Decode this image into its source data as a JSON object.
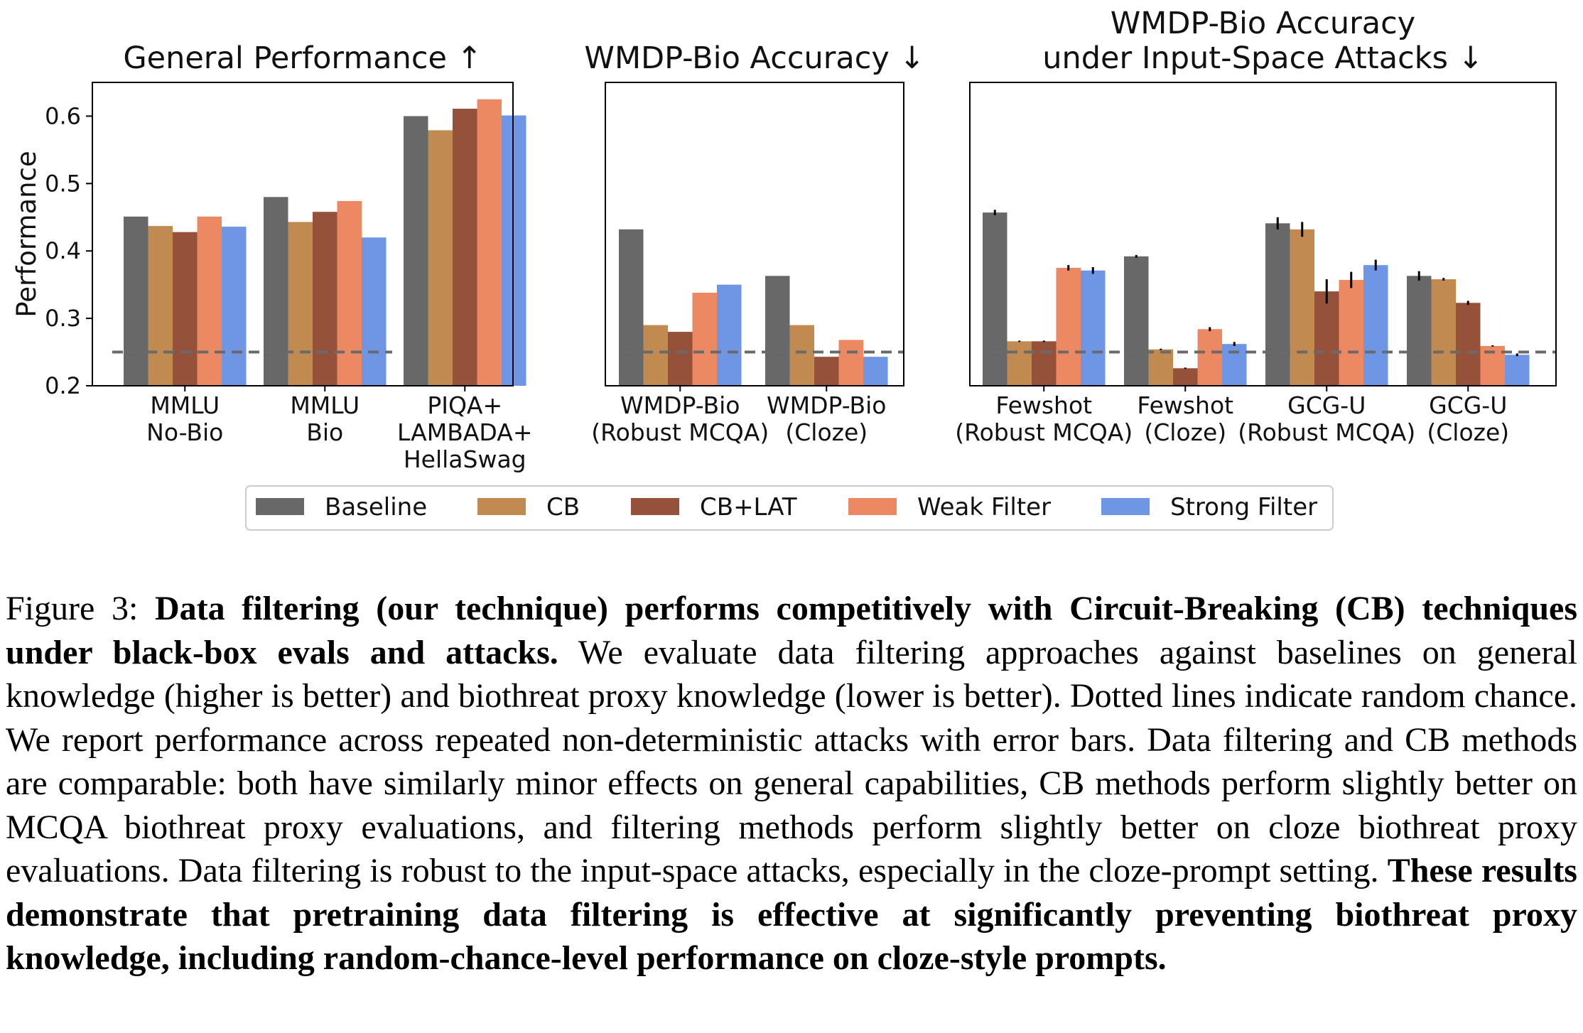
{
  "chart_data": [
    {
      "type": "bar",
      "title": "General Performance  ↑",
      "title_lines": [
        "General Performance  ↑"
      ],
      "ylabel": "Performance",
      "ylim": [
        0.2,
        0.65
      ],
      "yticks": [
        "0.2",
        "0.3",
        "0.4",
        "0.5",
        "0.6"
      ],
      "ytick_values": [
        0.2,
        0.3,
        0.4,
        0.5,
        0.6
      ],
      "random_chance": 0.25,
      "categories": [
        {
          "lines": [
            "MMLU",
            "No-Bio"
          ]
        },
        {
          "lines": [
            "MMLU",
            "Bio"
          ]
        },
        {
          "lines": [
            "PIQA+",
            "LAMBADA+",
            "HellaSwag"
          ]
        }
      ],
      "series": [
        {
          "name": "Baseline",
          "values": [
            0.451,
            0.48,
            0.6
          ]
        },
        {
          "name": "CB",
          "values": [
            0.437,
            0.443,
            0.579
          ]
        },
        {
          "name": "CB+LAT",
          "values": [
            0.428,
            0.458,
            0.611
          ]
        },
        {
          "name": "Weak Filter",
          "values": [
            0.451,
            0.474,
            0.625
          ]
        },
        {
          "name": "Strong Filter",
          "values": [
            0.436,
            0.42,
            0.601
          ]
        }
      ]
    },
    {
      "type": "bar",
      "title": "WMDP-Bio Accuracy  ↓",
      "title_lines": [
        "WMDP-Bio Accuracy  ↓"
      ],
      "ylim": [
        0.2,
        0.65
      ],
      "random_chance": 0.25,
      "categories": [
        {
          "lines": [
            "WMDP-Bio",
            "(Robust MCQA)"
          ]
        },
        {
          "lines": [
            "WMDP-Bio",
            "(Cloze)"
          ]
        }
      ],
      "series": [
        {
          "name": "Baseline",
          "values": [
            0.432,
            0.363
          ]
        },
        {
          "name": "CB",
          "values": [
            0.29,
            0.29
          ]
        },
        {
          "name": "CB+LAT",
          "values": [
            0.28,
            0.243
          ]
        },
        {
          "name": "Weak Filter",
          "values": [
            0.338,
            0.268
          ]
        },
        {
          "name": "Strong Filter",
          "values": [
            0.35,
            0.243
          ]
        }
      ]
    },
    {
      "type": "bar",
      "title": "WMDP-Bio Accuracy under Input-Space Attacks  ↓",
      "title_lines": [
        "WMDP-Bio Accuracy",
        "under Input-Space Attacks  ↓"
      ],
      "ylim": [
        0.2,
        0.65
      ],
      "random_chance": 0.25,
      "categories": [
        {
          "lines": [
            "Fewshot",
            "(Robust MCQA)"
          ]
        },
        {
          "lines": [
            "Fewshot",
            "(Cloze)"
          ]
        },
        {
          "lines": [
            "GCG-U",
            "(Robust MCQA)"
          ]
        },
        {
          "lines": [
            "GCG-U",
            "(Cloze)"
          ]
        }
      ],
      "series": [
        {
          "name": "Baseline",
          "values": [
            0.457,
            0.392,
            0.441,
            0.363
          ],
          "errors": [
            0.004,
            0.002,
            0.009,
            0.007
          ]
        },
        {
          "name": "CB",
          "values": [
            0.266,
            0.254,
            0.432,
            0.358
          ],
          "errors": [
            0.001,
            0.001,
            0.011,
            0.002
          ]
        },
        {
          "name": "CB+LAT",
          "values": [
            0.266,
            0.226,
            0.34,
            0.323
          ],
          "errors": [
            0.001,
            0.001,
            0.018,
            0.003
          ]
        },
        {
          "name": "Weak Filter",
          "values": [
            0.375,
            0.284,
            0.357,
            0.259
          ],
          "errors": [
            0.004,
            0.003,
            0.012,
            0.001
          ]
        },
        {
          "name": "Strong Filter",
          "values": [
            0.371,
            0.262,
            0.379,
            0.246
          ],
          "errors": [
            0.005,
            0.003,
            0.008,
            0.002
          ]
        }
      ]
    }
  ],
  "legend": {
    "placement": "bottom-center",
    "items": [
      {
        "name": "Baseline",
        "color": "#686868"
      },
      {
        "name": "CB",
        "color": "#c08a50"
      },
      {
        "name": "CB+LAT",
        "color": "#96513a"
      },
      {
        "name": "Weak Filter",
        "color": "#ec8962"
      },
      {
        "name": "Strong Filter",
        "color": "#6f96e4"
      }
    ]
  },
  "caption": {
    "label": "Figure 3: ",
    "bold_intro": "Data filtering (our technique) performs competitively with Circuit-Breaking (CB) techniques under black-box evals and attacks.",
    "body": " We evaluate data filtering approaches against baselines on general knowledge (higher is better) and biothreat proxy knowledge (lower is better). Dotted lines indicate random chance.  We report performance across repeated non-deterministic attacks with error bars. Data filtering and CB methods are comparable: both have similarly minor effects on general capabilities, CB methods perform slightly better on MCQA biothreat proxy evaluations, and filtering methods perform slightly better on cloze biothreat proxy evaluations. Data filtering is robust to the input-space attacks, especially in the cloze-prompt setting. ",
    "bold_outro": "These results demonstrate that pretraining data filtering is effective at significantly preventing biothreat proxy knowledge, including random-chance-level performance on cloze-style prompts."
  }
}
